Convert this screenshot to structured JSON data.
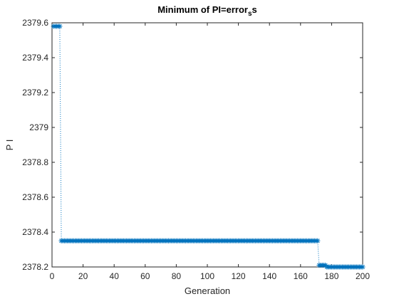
{
  "chart_data": {
    "type": "line",
    "title": "Minimum of PI=error",
    "title_subscript": "s",
    "title_tail": "s",
    "xlabel": "Generation",
    "ylabel": "P I",
    "xlim": [
      0,
      200
    ],
    "ylim": [
      2378.2,
      2379.6
    ],
    "xticks": [
      0,
      20,
      40,
      60,
      80,
      100,
      120,
      140,
      160,
      180,
      200
    ],
    "yticks": [
      2378.2,
      2378.4,
      2378.6,
      2378.8,
      2379,
      2379.2,
      2379.4,
      2379.6
    ],
    "ytick_labels": [
      "2378.2",
      "2378.4",
      "2378.6",
      "2378.8",
      "2379",
      "2379.2",
      "2379.4",
      "2379.6"
    ],
    "grid": false,
    "line_style": "dotted",
    "marker": "asterisk",
    "series_color": "#0072BD",
    "series": [
      {
        "segments": [
          {
            "x_start": 1,
            "x_end": 5,
            "y": 2379.58
          },
          {
            "x_start": 6,
            "x_end": 171,
            "y": 2378.35
          },
          {
            "x_start": 172,
            "x_end": 176,
            "y": 2378.21
          },
          {
            "x_start": 177,
            "x_end": 200,
            "y": 2378.2
          }
        ]
      }
    ]
  }
}
